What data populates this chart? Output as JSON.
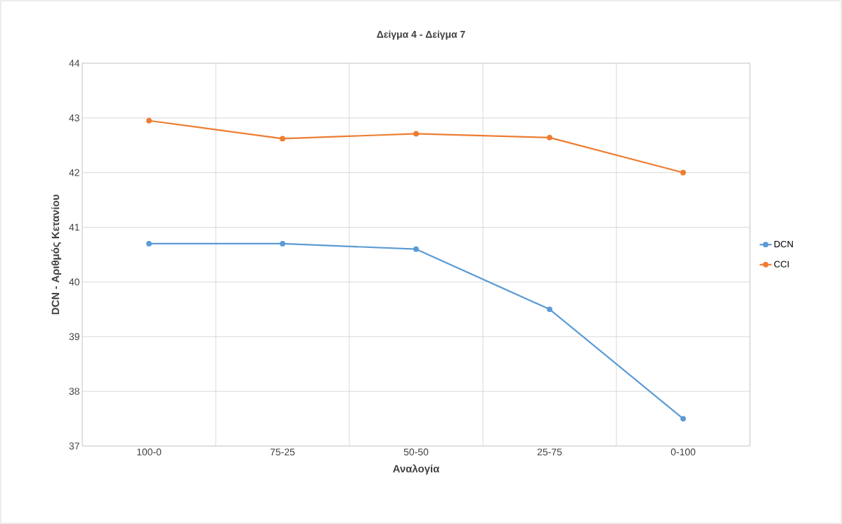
{
  "chart_data": {
    "type": "line",
    "title": "Δείγμα 4 - Δείγμα 7",
    "xlabel": "Αναλογία",
    "ylabel": "DCN - Αριθμός Κετανίου",
    "categories": [
      "100-0",
      "75-25",
      "50-50",
      "25-75",
      "0-100"
    ],
    "series": [
      {
        "name": "DCN",
        "color": "#5b9bd5",
        "values": [
          40.7,
          40.7,
          40.6,
          39.5,
          37.5
        ]
      },
      {
        "name": "CCI",
        "color": "#ed7d31",
        "values": [
          42.95,
          42.62,
          42.71,
          42.64,
          42.0
        ]
      }
    ],
    "ylim": [
      37,
      44
    ],
    "yticks": [
      37,
      38,
      39,
      40,
      41,
      42,
      43,
      44
    ],
    "grid": true,
    "legend": "right",
    "marker": "circle",
    "line_style": "solid"
  }
}
